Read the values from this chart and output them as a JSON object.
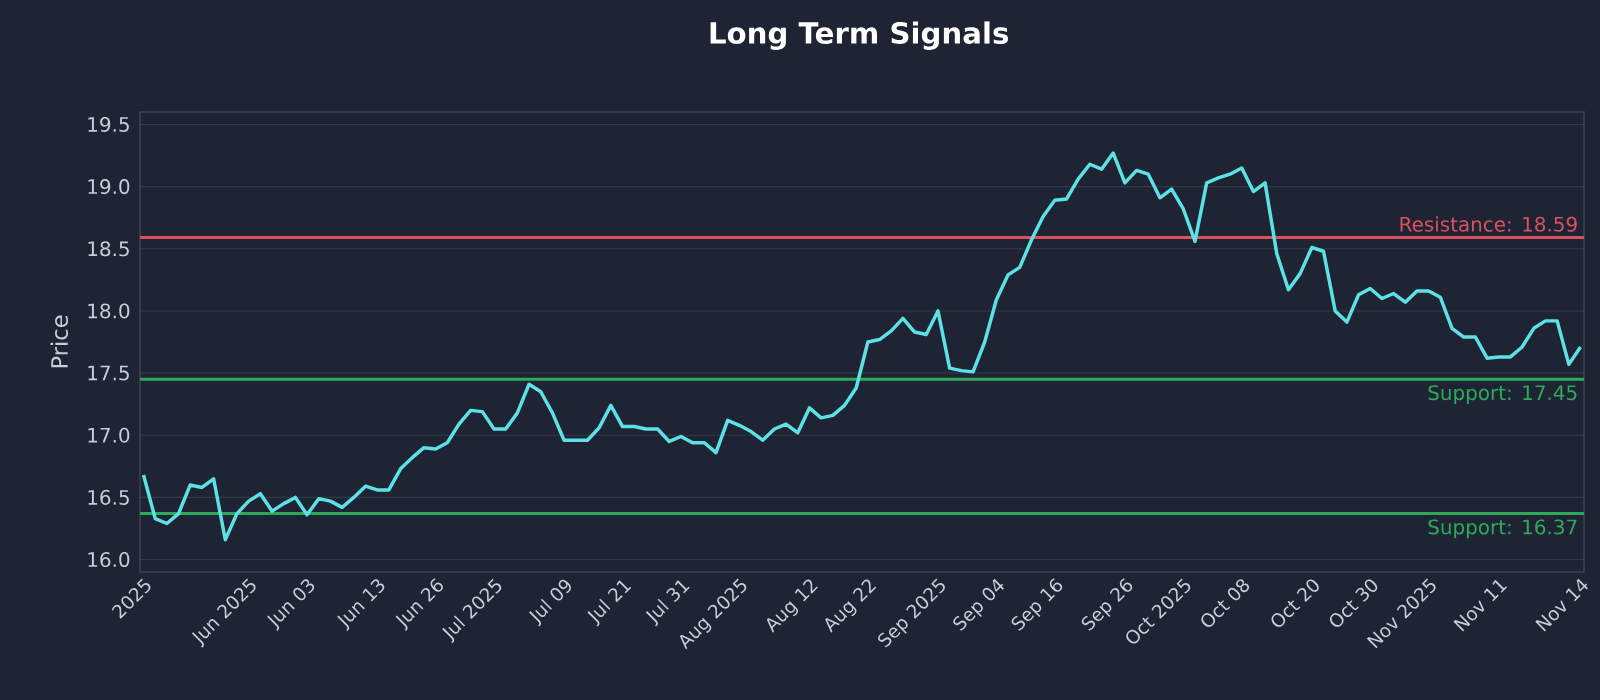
{
  "chart_data": {
    "type": "line",
    "title": "Long Term Signals",
    "ylabel": "Price",
    "categories": [
      "2025",
      null,
      null,
      null,
      null,
      null,
      null,
      null,
      null,
      "Jun 2025",
      null,
      null,
      null,
      null,
      "Jun 03",
      null,
      null,
      null,
      null,
      null,
      "Jun 13",
      null,
      null,
      null,
      null,
      "Jun 26",
      null,
      null,
      null,
      null,
      "Jul 2025",
      null,
      null,
      null,
      null,
      null,
      "Jul 09",
      null,
      null,
      null,
      null,
      "Jul 21",
      null,
      null,
      null,
      null,
      "Jul 31",
      null,
      null,
      null,
      null,
      "Aug 2025",
      null,
      null,
      null,
      null,
      null,
      "Aug 12",
      null,
      null,
      null,
      null,
      "Aug 22",
      null,
      null,
      null,
      null,
      null,
      "Sep 2025",
      null,
      null,
      null,
      null,
      "Sep 04",
      null,
      null,
      null,
      null,
      "Sep 16",
      null,
      null,
      null,
      null,
      null,
      "Sep 26",
      null,
      null,
      null,
      null,
      "Oct 2025",
      null,
      null,
      null,
      null,
      "Oct 08",
      null,
      null,
      null,
      null,
      null,
      "Oct 20",
      null,
      null,
      null,
      null,
      "Oct 30",
      null,
      null,
      null,
      null,
      "Nov 2025",
      null,
      null,
      null,
      null,
      null,
      "Nov 11",
      null,
      null,
      null,
      null,
      null,
      null,
      "Nov 14"
    ],
    "series": [
      {
        "color": "#5ce1e6",
        "values": [
          16.68,
          16.33,
          16.29,
          16.37,
          16.6,
          16.58,
          16.65,
          16.16,
          16.37,
          16.47,
          16.53,
          16.39,
          16.45,
          16.5,
          16.36,
          16.49,
          16.47,
          16.42,
          16.5,
          16.59,
          16.56,
          16.56,
          16.73,
          16.82,
          16.9,
          16.89,
          16.94,
          17.09,
          17.2,
          17.19,
          17.05,
          17.05,
          17.18,
          17.41,
          17.35,
          17.18,
          16.96,
          16.96,
          16.96,
          17.06,
          17.24,
          17.07,
          17.07,
          17.05,
          17.05,
          16.95,
          16.99,
          16.94,
          16.94,
          16.86,
          17.12,
          17.08,
          17.03,
          16.96,
          17.05,
          17.09,
          17.02,
          17.22,
          17.14,
          17.16,
          17.24,
          17.38,
          17.75,
          17.77,
          17.84,
          17.94,
          17.83,
          17.81,
          18.0,
          17.54,
          17.52,
          17.51,
          17.75,
          18.09,
          18.29,
          18.35,
          18.57,
          18.76,
          18.89,
          18.9,
          19.06,
          19.18,
          19.14,
          19.27,
          19.03,
          19.13,
          19.1,
          18.91,
          18.98,
          18.82,
          18.56,
          19.03,
          19.07,
          19.1,
          19.15,
          18.96,
          19.03,
          18.46,
          18.17,
          18.3,
          18.51,
          18.48,
          18.0,
          17.91,
          18.13,
          18.18,
          18.1,
          18.14,
          18.07,
          18.16,
          18.16,
          18.11,
          17.86,
          17.79,
          17.79,
          17.62,
          17.63,
          17.63,
          17.71,
          17.86,
          17.92,
          17.92,
          17.57,
          17.71
        ]
      }
    ],
    "ylim": [
      15.9,
      19.6
    ],
    "yticks": [
      {
        "value": 16,
        "label": "16.0"
      },
      {
        "value": 16.5,
        "label": "16.5"
      },
      {
        "value": 17,
        "label": "17.0"
      },
      {
        "value": 17.5,
        "label": "17.5"
      },
      {
        "value": 18,
        "label": "18.0"
      },
      {
        "value": 18.5,
        "label": "18.5"
      },
      {
        "value": 19,
        "label": "19.0"
      },
      {
        "value": 19.5,
        "label": "19.5"
      }
    ],
    "grid": "y",
    "ref_lines": [
      {
        "axis": "y",
        "value": 18.59,
        "label": "Resistance: 18.59",
        "color": "#d9505f"
      },
      {
        "axis": "y",
        "value": 17.45,
        "label": "Support: 17.45",
        "color": "#2ea85a"
      },
      {
        "axis": "y",
        "value": 16.37,
        "label": "Support: 16.37",
        "color": "#2ea85a"
      }
    ]
  }
}
